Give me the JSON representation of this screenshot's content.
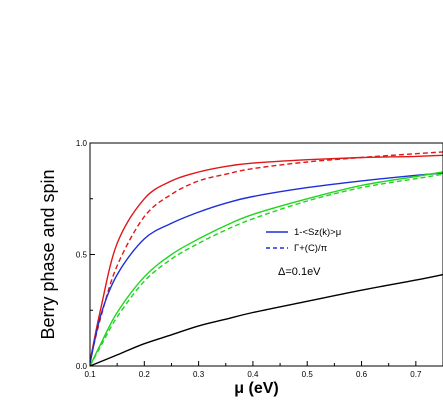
{
  "chart_data": {
    "type": "line",
    "xlabel": "μ (eV)",
    "ylabel": "Berry phase and spin",
    "xlim": [
      0.1,
      0.75
    ],
    "ylim": [
      0.0,
      1.0
    ],
    "x_ticks": [
      "0.1",
      "0.2",
      "0.3",
      "0.4",
      "0.5",
      "0.6",
      "0.7"
    ],
    "y_ticks": [
      "0.0",
      "0.5",
      "1.0"
    ],
    "grid": false,
    "legend": {
      "position": "center-right",
      "items": [
        {
          "label": "1-<Sz(k)>μ",
          "color": "#1f2fd6",
          "dash": "solid"
        },
        {
          "label": "Γ+(C)/π",
          "color": "#1f2fd6",
          "dash": "dashed"
        }
      ]
    },
    "annotation": "Δ=0.1eV",
    "series": [
      {
        "color": "#e01818",
        "dash": "solid",
        "x": [
          0.1,
          0.12,
          0.15,
          0.2,
          0.25,
          0.3,
          0.35,
          0.4,
          0.5,
          0.6,
          0.7,
          0.75
        ],
        "y": [
          0.02,
          0.26,
          0.55,
          0.75,
          0.83,
          0.87,
          0.895,
          0.91,
          0.925,
          0.935,
          0.94,
          0.945
        ]
      },
      {
        "color": "#e01818",
        "dash": "dashed",
        "x": [
          0.1,
          0.12,
          0.15,
          0.2,
          0.25,
          0.3,
          0.35,
          0.4,
          0.5,
          0.6,
          0.7,
          0.75
        ],
        "y": [
          0.02,
          0.22,
          0.45,
          0.67,
          0.77,
          0.83,
          0.86,
          0.885,
          0.915,
          0.935,
          0.952,
          0.96
        ]
      },
      {
        "color": "#1f2fd6",
        "dash": "solid",
        "x": [
          0.1,
          0.12,
          0.15,
          0.2,
          0.25,
          0.3,
          0.35,
          0.4,
          0.5,
          0.6,
          0.7,
          0.75
        ],
        "y": [
          0.01,
          0.23,
          0.41,
          0.57,
          0.64,
          0.69,
          0.73,
          0.76,
          0.8,
          0.83,
          0.855,
          0.865
        ]
      },
      {
        "color": "#1fd61f",
        "dash": "solid",
        "x": [
          0.1,
          0.12,
          0.15,
          0.2,
          0.25,
          0.3,
          0.35,
          0.4,
          0.5,
          0.6,
          0.7,
          0.75
        ],
        "y": [
          0.0,
          0.1,
          0.24,
          0.4,
          0.5,
          0.57,
          0.63,
          0.68,
          0.75,
          0.81,
          0.85,
          0.87
        ]
      },
      {
        "color": "#1fd61f",
        "dash": "dashed",
        "x": [
          0.1,
          0.12,
          0.15,
          0.2,
          0.25,
          0.3,
          0.35,
          0.4,
          0.5,
          0.6,
          0.7,
          0.75
        ],
        "y": [
          0.0,
          0.09,
          0.22,
          0.38,
          0.48,
          0.55,
          0.61,
          0.66,
          0.74,
          0.8,
          0.84,
          0.86
        ]
      },
      {
        "color": "#000000",
        "dash": "solid",
        "x": [
          0.1,
          0.15,
          0.2,
          0.25,
          0.3,
          0.35,
          0.4,
          0.5,
          0.6,
          0.7,
          0.75
        ],
        "y": [
          0.0,
          0.05,
          0.1,
          0.14,
          0.18,
          0.21,
          0.24,
          0.29,
          0.34,
          0.385,
          0.41
        ]
      }
    ]
  }
}
